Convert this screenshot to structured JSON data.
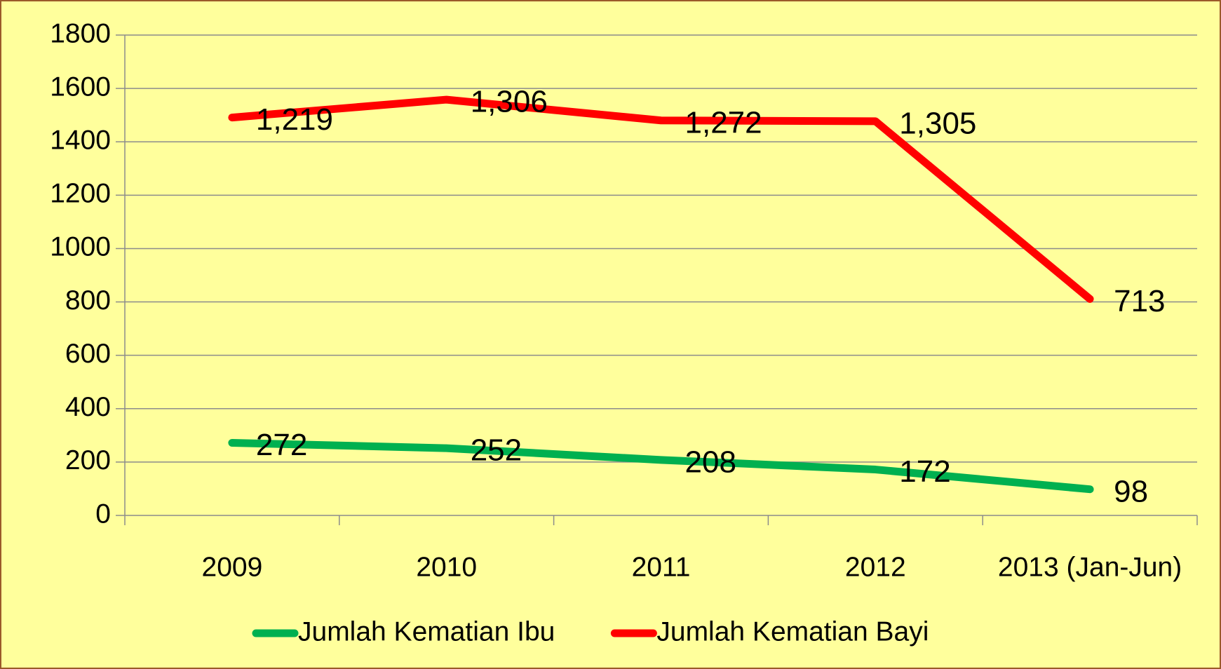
{
  "chart_data": {
    "type": "line",
    "stacked": true,
    "categories": [
      "2009",
      "2010",
      "2011",
      "2012",
      "2013 (Jan-Jun)"
    ],
    "series": [
      {
        "name": "Jumlah Kematian Ibu",
        "color": "#00b050",
        "values": [
          272,
          252,
          208,
          172,
          98
        ]
      },
      {
        "name": "Jumlah Kematian Bayi",
        "color": "#ff0000",
        "values": [
          1219,
          1306,
          1272,
          1305,
          713
        ],
        "value_labels": [
          "1,219",
          "1,306",
          "1,272",
          "1,305",
          "713"
        ]
      }
    ],
    "ylim": [
      0,
      1800
    ],
    "yticks": [
      0,
      200,
      400,
      600,
      800,
      1000,
      1200,
      1400,
      1600,
      1800
    ],
    "grid": true,
    "legend": "bottom"
  }
}
